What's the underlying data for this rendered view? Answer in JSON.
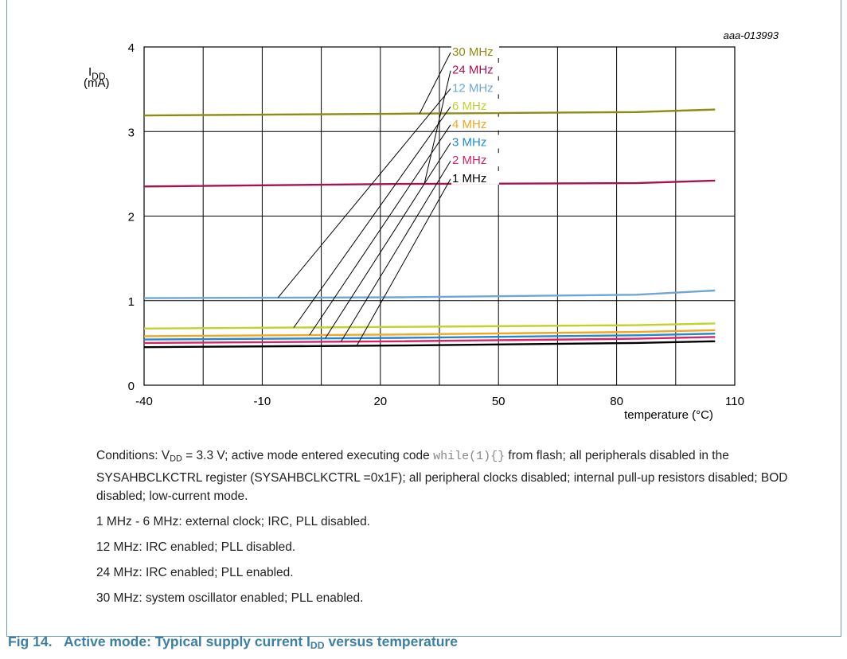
{
  "figure_id": "aaa-013993",
  "caption": {
    "number": "Fig 14.",
    "text_before": "Active mode: Typical supply current I",
    "sub": "DD",
    "text_after": " versus temperature"
  },
  "conditions": {
    "line1_a": "Conditions: V",
    "line1_sub": "DD",
    "line1_b": " = 3.3 V; active mode entered executing code ",
    "line1_code": "while(1){}",
    "line1_c": " from flash; all peripherals disabled in the SYSAHBCLKCTRL register (SYSAHBCLKCTRL =0x1F); all peripheral clocks disabled; internal pull-up resistors disabled; BOD disabled; low-current mode.",
    "notes": [
      "1 MHz - 6 MHz: external clock; IRC, PLL disabled.",
      "12 MHz: IRC enabled; PLL disabled.",
      "24 MHz: IRC enabled; PLL enabled.",
      "30 MHz: system oscillator enabled; PLL enabled."
    ]
  },
  "chart_data": {
    "type": "line",
    "ylabel_main": "I",
    "ylabel_sub": "DD",
    "ylabel_unit": "(mA)",
    "xlabel": "temperature (°C)",
    "xlim": [
      -40,
      110
    ],
    "ylim": [
      0,
      4
    ],
    "xticks": [
      -40,
      -10,
      20,
      50,
      80,
      110
    ],
    "yticks": [
      0,
      1,
      2,
      3,
      4
    ],
    "grid": true,
    "x": [
      -40,
      25,
      85,
      105
    ],
    "series": [
      {
        "name": "30 MHz",
        "color": "#8c8c12",
        "values": [
          3.19,
          3.21,
          3.23,
          3.26
        ]
      },
      {
        "name": "24 MHz",
        "color": "#a8124e",
        "values": [
          2.35,
          2.38,
          2.39,
          2.42
        ]
      },
      {
        "name": "12 MHz",
        "color": "#6fa6d8",
        "values": [
          1.03,
          1.04,
          1.07,
          1.12
        ]
      },
      {
        "name": "6 MHz",
        "color": "#c2d22a",
        "values": [
          0.67,
          0.69,
          0.71,
          0.73
        ]
      },
      {
        "name": "4 MHz",
        "color": "#f2a81e",
        "values": [
          0.58,
          0.6,
          0.63,
          0.65
        ]
      },
      {
        "name": "3 MHz",
        "color": "#1e8bd0",
        "values": [
          0.54,
          0.56,
          0.59,
          0.61
        ]
      },
      {
        "name": "2 MHz",
        "color": "#d8236a",
        "values": [
          0.5,
          0.52,
          0.55,
          0.57
        ]
      },
      {
        "name": "1 MHz",
        "color": "#000000",
        "values": [
          0.45,
          0.47,
          0.5,
          0.52
        ]
      }
    ]
  }
}
